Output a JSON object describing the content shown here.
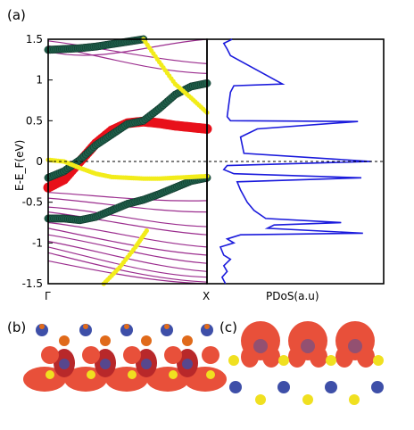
{
  "figure": {
    "panel_labels": [
      "(a)",
      "(b)",
      "(c)"
    ]
  },
  "chart_data": [
    {
      "type": "line",
      "panel": "(a)",
      "subtype": "band structure (fat bands)",
      "xlabel": "",
      "ylabel": "E-E_F(eV)",
      "x_ticks": [
        "Γ",
        "X"
      ],
      "ylim": [
        -1.5,
        1.5
      ],
      "y_ticks": [
        "-1.5",
        "-1",
        "-0.5",
        "0",
        "0.5",
        "1",
        "1.5"
      ],
      "fermi_line": 0,
      "colors": {
        "thin_bands": "#9b2d8e",
        "red_band": "#e8101a",
        "green_band": "#1f5f4a",
        "yellow_band": "#f2ec1a",
        "fermi": "#000000"
      },
      "series": [
        {
          "color": "red",
          "x": [
            0,
            0.1,
            0.2,
            0.3,
            0.4,
            0.5,
            0.6,
            0.7,
            0.8,
            0.9,
            1.0
          ],
          "y": [
            -0.32,
            -0.22,
            0.0,
            0.22,
            0.38,
            0.47,
            0.49,
            0.47,
            0.44,
            0.42,
            0.4
          ]
        },
        {
          "color": "green",
          "x": [
            0,
            0.1,
            0.2,
            0.3,
            0.4,
            0.5,
            0.6,
            0.7,
            0.8,
            0.9,
            1.0
          ],
          "y": [
            -0.2,
            -0.12,
            0.02,
            0.2,
            0.33,
            0.46,
            0.5,
            0.65,
            0.82,
            0.92,
            0.96
          ]
        },
        {
          "color": "green",
          "x": [
            0,
            0.1,
            0.2,
            0.3,
            0.4,
            0.5,
            0.6,
            0.7,
            0.8,
            0.9,
            1.0
          ],
          "y": [
            -0.7,
            -0.7,
            -0.72,
            -0.68,
            -0.6,
            -0.52,
            -0.47,
            -0.4,
            -0.32,
            -0.24,
            -0.2
          ]
        },
        {
          "color": "green",
          "x": [
            0,
            0.1,
            0.2,
            0.3,
            0.4,
            0.5,
            0.6,
            0.7
          ],
          "y": [
            1.37,
            1.38,
            1.39,
            1.41,
            1.44,
            1.47,
            1.5,
            1.52
          ]
        },
        {
          "color": "yellow",
          "x": [
            0,
            0.1,
            0.2,
            0.3,
            0.4,
            0.5,
            0.6,
            0.7,
            0.8,
            0.9,
            1.0
          ],
          "y": [
            0.02,
            0.0,
            -0.08,
            -0.15,
            -0.19,
            -0.2,
            -0.21,
            -0.21,
            -0.2,
            -0.19,
            -0.18
          ]
        },
        {
          "color": "yellow",
          "x": [
            0.6,
            0.7,
            0.8,
            0.9,
            1.0
          ],
          "y": [
            1.5,
            1.22,
            0.95,
            0.78,
            0.6
          ]
        },
        {
          "color": "yellow",
          "x": [
            0.35,
            0.45,
            0.55,
            0.62
          ],
          "y": [
            -1.5,
            -1.3,
            -1.05,
            -0.85
          ]
        }
      ]
    },
    {
      "type": "line",
      "panel": "(a)",
      "subtype": "PDoS",
      "xlabel": "PDoS(a.u)",
      "ylabel": "",
      "ylim": [
        -1.5,
        1.5
      ],
      "color": "#1a1adc",
      "series": [
        {
          "x": [
            0.15,
            0.1,
            0.12,
            0.14,
            0.45,
            0.16,
            0.14,
            0.13,
            0.12,
            0.14,
            0.9,
            0.3,
            0.2,
            0.22,
            0.98,
            0.12,
            0.1,
            0.16,
            0.92,
            0.18,
            0.2,
            0.24,
            0.28,
            0.35,
            0.8,
            0.4,
            0.36,
            0.93,
            0.2,
            0.12,
            0.16,
            0.08,
            0.1,
            0.14,
            0.1,
            0.12,
            0.09,
            0.11
          ],
          "y": [
            1.5,
            1.45,
            1.38,
            1.3,
            0.95,
            0.93,
            0.85,
            0.7,
            0.55,
            0.5,
            0.49,
            0.4,
            0.3,
            0.1,
            0.0,
            -0.05,
            -0.1,
            -0.15,
            -0.2,
            -0.25,
            -0.35,
            -0.5,
            -0.6,
            -0.7,
            -0.75,
            -0.78,
            -0.82,
            -0.88,
            -0.9,
            -0.95,
            -1.0,
            -1.05,
            -1.15,
            -1.2,
            -1.28,
            -1.35,
            -1.42,
            -1.5
          ]
        }
      ]
    }
  ],
  "structure_b": {
    "colors": {
      "isosurface": "#e8503a",
      "isosurface_dark": "#b8282a",
      "atom_blue": "#3e4fa8",
      "atom_yellow": "#f0e020",
      "atom_orange": "#e06a1a"
    }
  },
  "structure_c": {
    "colors": {
      "isosurface": "#e8503a",
      "atom_blue": "#3e4fa8",
      "atom_yellow": "#f0e020"
    }
  }
}
